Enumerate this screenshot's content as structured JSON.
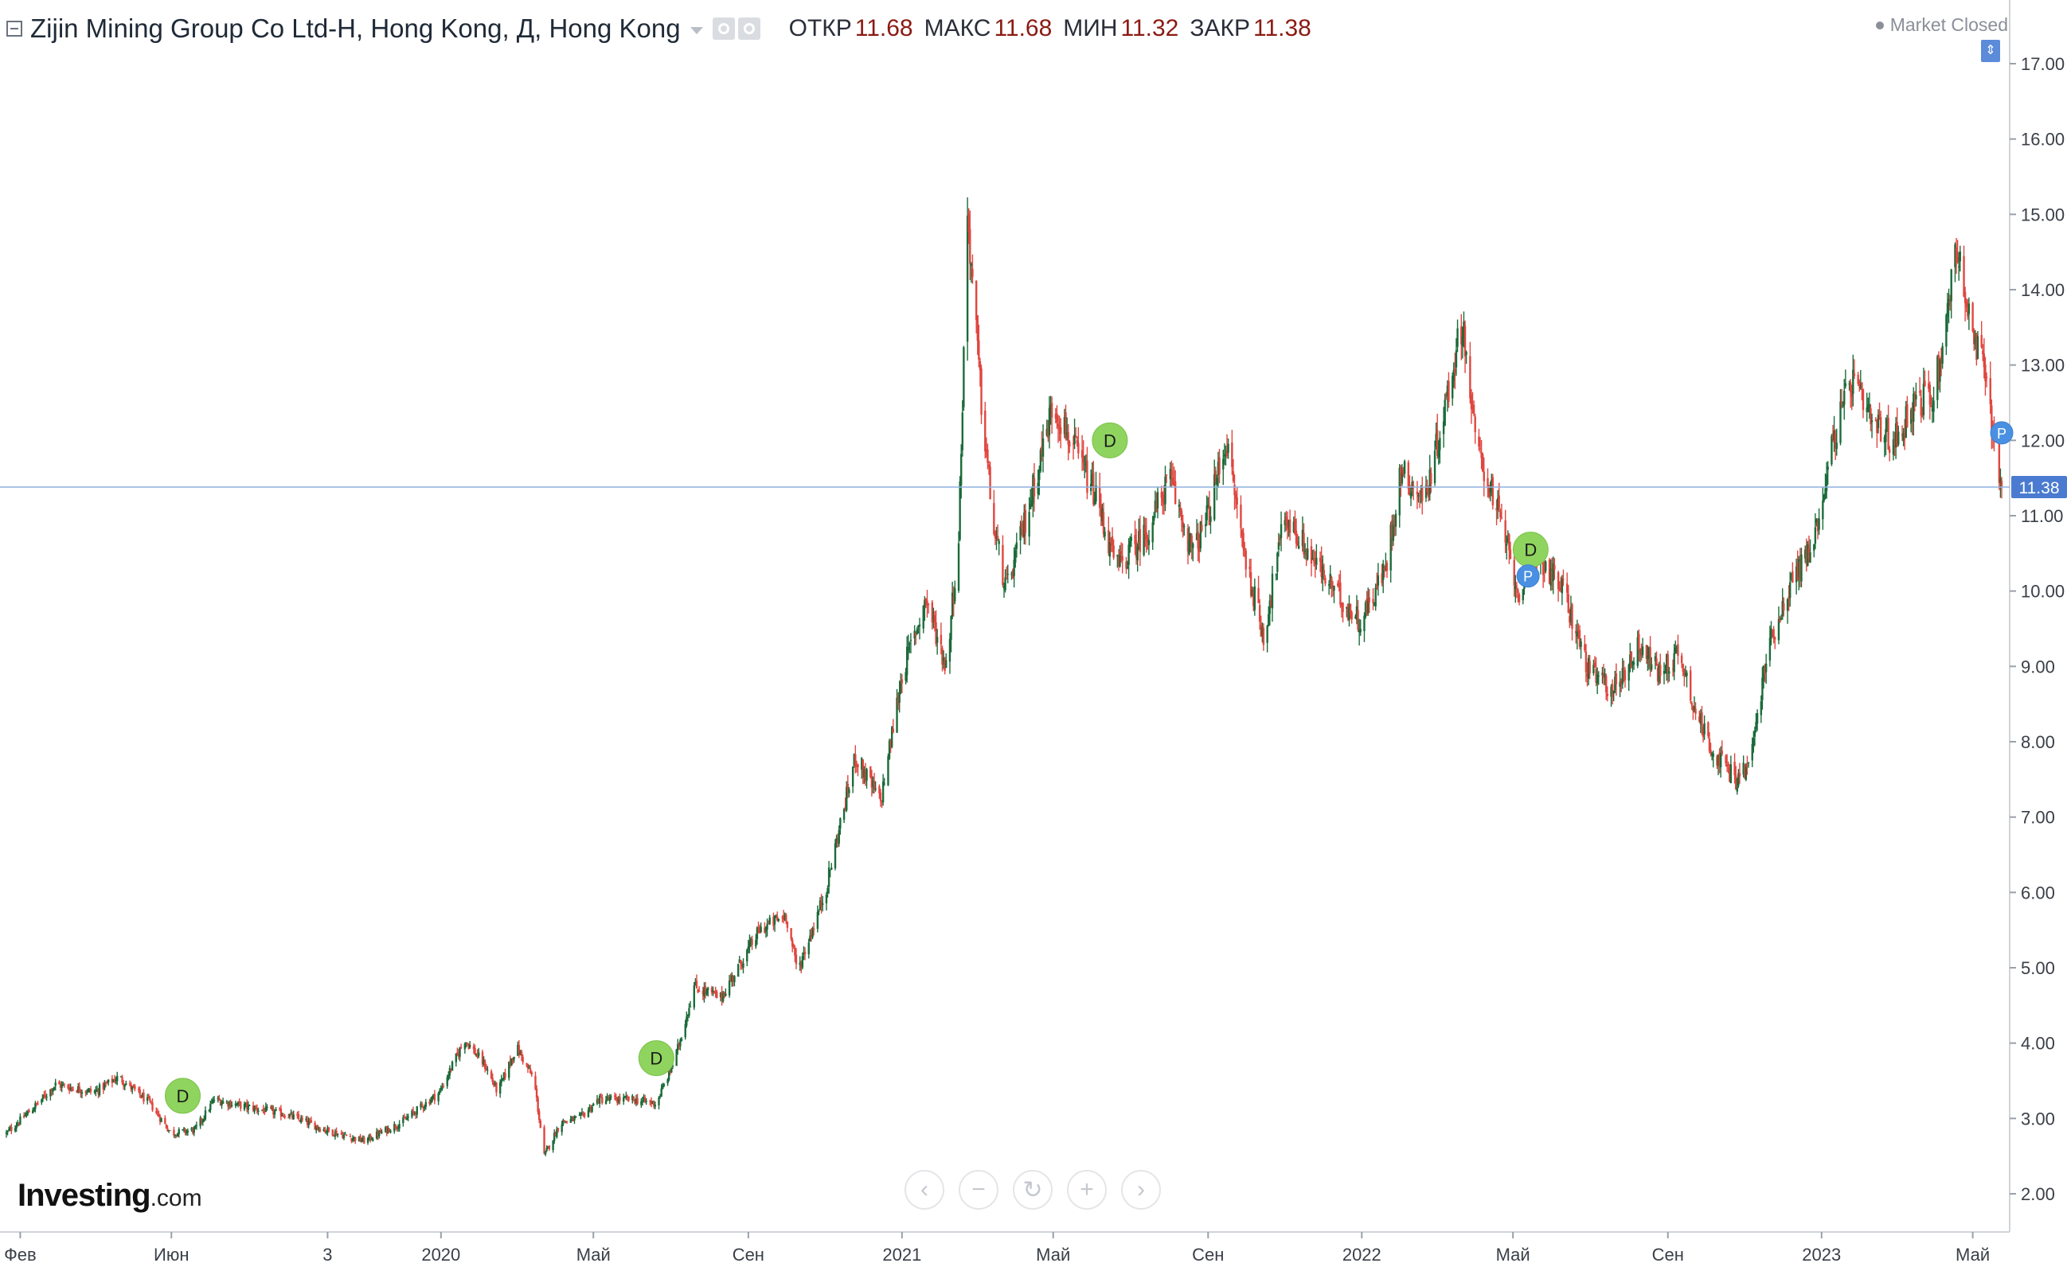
{
  "header": {
    "title": "Zijin Mining Group Co Ltd-H, Hong Kong, Д, Hong Kong",
    "ohlc": [
      {
        "label": "ОТКР",
        "value": "11.68"
      },
      {
        "label": "МАКС",
        "value": "11.68"
      },
      {
        "label": "МИН",
        "value": "11.32"
      },
      {
        "label": "ЗАКР",
        "value": "11.38"
      }
    ],
    "market_status": "Market Closed"
  },
  "logo": {
    "main": "Investing",
    "suffix": ".com"
  },
  "nav_buttons": [
    {
      "name": "scroll-left-button",
      "icon": "chevron-left-icon",
      "glyph": "‹"
    },
    {
      "name": "zoom-out-button",
      "icon": "minus-icon",
      "glyph": "−"
    },
    {
      "name": "reset-button",
      "icon": "refresh-icon",
      "glyph": "↻"
    },
    {
      "name": "zoom-in-button",
      "icon": "plus-icon",
      "glyph": "+"
    },
    {
      "name": "scroll-right-button",
      "icon": "chevron-right-icon",
      "glyph": "›"
    }
  ],
  "colors": {
    "up": "#1b6b3a",
    "down": "#e0463f",
    "price_line": "#8fb0e0",
    "price_label_bg": "#4a7bd0",
    "dividend": "#8fd45f",
    "split": "#4a90e2"
  },
  "chart_data": {
    "type": "candlestick",
    "title": "Zijin Mining Group Co Ltd-H, Hong Kong, Д, Hong Kong",
    "last_price": 11.38,
    "last_price_label": "11.38",
    "ylim": [
      1.7,
      17.3
    ],
    "yticks": [
      "2.00",
      "3.00",
      "4.00",
      "5.00",
      "6.00",
      "7.00",
      "8.00",
      "9.00",
      "10.00",
      "11.00",
      "12.00",
      "13.00",
      "14.00",
      "15.00",
      "16.00",
      "17.00"
    ],
    "x_start": "2019-01-21",
    "x_end": "2023-05-24",
    "xticks": [
      {
        "label": "Фев",
        "date": "2019-02-01"
      },
      {
        "label": "Июн",
        "date": "2019-06-01"
      },
      {
        "label": "3",
        "date": "2019-10-03"
      },
      {
        "label": "2020",
        "date": "2020-01-01"
      },
      {
        "label": "Май",
        "date": "2020-05-01"
      },
      {
        "label": "Сен",
        "date": "2020-09-01"
      },
      {
        "label": "2021",
        "date": "2021-01-01"
      },
      {
        "label": "Май",
        "date": "2021-05-01"
      },
      {
        "label": "Сен",
        "date": "2021-09-01"
      },
      {
        "label": "2022",
        "date": "2022-01-01"
      },
      {
        "label": "Май",
        "date": "2022-05-01"
      },
      {
        "label": "Сен",
        "date": "2022-09-01"
      },
      {
        "label": "2023",
        "date": "2023-01-01"
      },
      {
        "label": "Май",
        "date": "2023-05-01"
      }
    ],
    "price_path": [
      [
        "2019-01-21",
        2.8
      ],
      [
        "2019-02-15",
        3.2
      ],
      [
        "2019-03-01",
        3.45
      ],
      [
        "2019-04-01",
        3.35
      ],
      [
        "2019-04-20",
        3.55
      ],
      [
        "2019-05-15",
        3.2
      ],
      [
        "2019-06-01",
        2.8
      ],
      [
        "2019-06-20",
        2.85
      ],
      [
        "2019-07-05",
        3.25
      ],
      [
        "2019-08-01",
        3.15
      ],
      [
        "2019-09-01",
        3.05
      ],
      [
        "2019-10-01",
        2.85
      ],
      [
        "2019-11-01",
        2.7
      ],
      [
        "2019-12-01",
        2.95
      ],
      [
        "2019-12-31",
        3.35
      ],
      [
        "2020-01-20",
        4.05
      ],
      [
        "2020-02-05",
        3.7
      ],
      [
        "2020-02-15",
        3.35
      ],
      [
        "2020-03-01",
        3.95
      ],
      [
        "2020-03-15",
        3.5
      ],
      [
        "2020-03-23",
        2.5
      ],
      [
        "2020-04-05",
        2.95
      ],
      [
        "2020-04-20",
        3.0
      ],
      [
        "2020-05-05",
        3.25
      ],
      [
        "2020-06-01",
        3.25
      ],
      [
        "2020-06-20",
        3.2
      ],
      [
        "2020-07-05",
        3.8
      ],
      [
        "2020-07-20",
        4.75
      ],
      [
        "2020-08-10",
        4.6
      ],
      [
        "2020-09-10",
        5.5
      ],
      [
        "2020-10-01",
        5.7
      ],
      [
        "2020-10-10",
        4.95
      ],
      [
        "2020-11-01",
        6.0
      ],
      [
        "2020-11-25",
        7.8
      ],
      [
        "2020-12-15",
        7.2
      ],
      [
        "2021-01-01",
        8.9
      ],
      [
        "2021-01-20",
        9.9
      ],
      [
        "2021-02-05",
        9.0
      ],
      [
        "2021-02-15",
        10.7
      ],
      [
        "2021-02-22",
        15.0
      ],
      [
        "2021-03-05",
        12.5
      ],
      [
        "2021-03-15",
        10.8
      ],
      [
        "2021-03-25",
        10.0
      ],
      [
        "2021-04-10",
        11.0
      ],
      [
        "2021-05-01",
        12.5
      ],
      [
        "2021-05-20",
        11.8
      ],
      [
        "2021-06-05",
        11.2
      ],
      [
        "2021-06-20",
        10.3
      ],
      [
        "2021-07-15",
        10.8
      ],
      [
        "2021-08-01",
        11.5
      ],
      [
        "2021-08-20",
        10.5
      ],
      [
        "2021-09-01",
        11.0
      ],
      [
        "2021-09-15",
        12.0
      ],
      [
        "2021-10-01",
        10.4
      ],
      [
        "2021-10-15",
        9.4
      ],
      [
        "2021-11-01",
        11.0
      ],
      [
        "2021-11-20",
        10.5
      ],
      [
        "2021-12-10",
        10.0
      ],
      [
        "2021-12-31",
        9.6
      ],
      [
        "2022-01-20",
        10.3
      ],
      [
        "2022-02-01",
        11.6
      ],
      [
        "2022-02-20",
        11.2
      ],
      [
        "2022-03-10",
        12.6
      ],
      [
        "2022-03-22",
        13.6
      ],
      [
        "2022-04-01",
        12.0
      ],
      [
        "2022-04-20",
        11.0
      ],
      [
        "2022-05-05",
        10.0
      ],
      [
        "2022-05-20",
        10.5
      ],
      [
        "2022-06-10",
        10.0
      ],
      [
        "2022-07-01",
        8.9
      ],
      [
        "2022-07-20",
        8.7
      ],
      [
        "2022-08-10",
        9.3
      ],
      [
        "2022-08-25",
        8.9
      ],
      [
        "2022-09-10",
        9.2
      ],
      [
        "2022-09-25",
        8.3
      ],
      [
        "2022-10-10",
        7.8
      ],
      [
        "2022-10-25",
        7.5
      ],
      [
        "2022-11-05",
        7.7
      ],
      [
        "2022-11-20",
        9.3
      ],
      [
        "2022-12-10",
        10.2
      ],
      [
        "2022-12-25",
        10.6
      ],
      [
        "2023-01-10",
        12.0
      ],
      [
        "2023-01-25",
        12.8
      ],
      [
        "2023-02-10",
        12.2
      ],
      [
        "2023-02-28",
        12.0
      ],
      [
        "2023-03-15",
        12.5
      ],
      [
        "2023-03-31",
        12.6
      ],
      [
        "2023-04-10",
        13.6
      ],
      [
        "2023-04-18",
        14.6
      ],
      [
        "2023-05-01",
        13.3
      ],
      [
        "2023-05-10",
        13.0
      ],
      [
        "2023-05-20",
        11.8
      ],
      [
        "2023-05-24",
        11.38
      ]
    ],
    "events": [
      {
        "type": "dividend",
        "label": "D",
        "date": "2019-06-10",
        "price": 3.3
      },
      {
        "type": "dividend",
        "label": "D",
        "date": "2020-06-20",
        "price": 3.8
      },
      {
        "type": "dividend",
        "label": "D",
        "date": "2021-06-15",
        "price": 12.0
      },
      {
        "type": "dividend",
        "label": "D",
        "date": "2022-05-15",
        "price": 10.55
      },
      {
        "type": "split",
        "label": "P",
        "date": "2022-05-13",
        "price": 10.2
      },
      {
        "type": "split",
        "label": "P",
        "date": "2023-05-24",
        "price": 12.1
      }
    ]
  }
}
